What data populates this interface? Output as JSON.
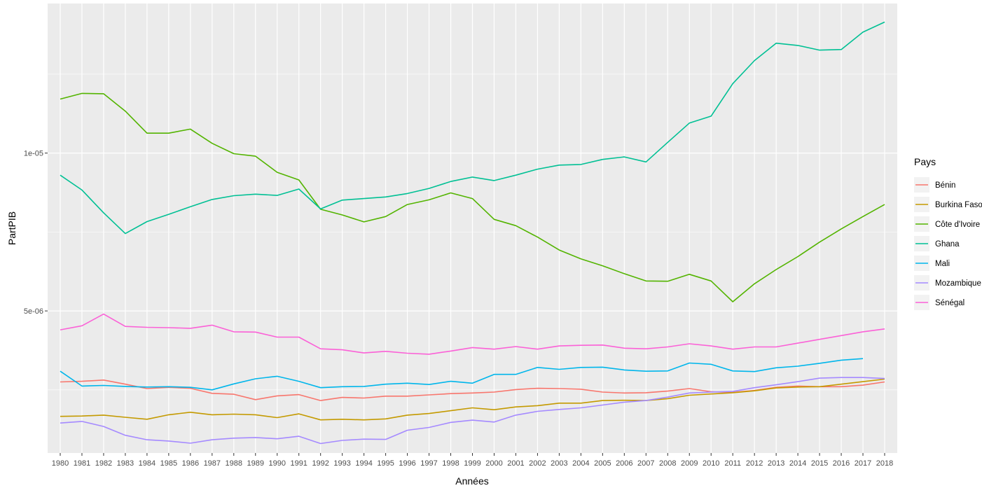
{
  "chart_data": {
    "type": "line",
    "xlabel": "Années",
    "ylabel": "PartPIB",
    "x": [
      1980,
      1981,
      1982,
      1983,
      1984,
      1985,
      1986,
      1987,
      1988,
      1989,
      1990,
      1991,
      1992,
      1993,
      1994,
      1995,
      1996,
      1997,
      1998,
      1999,
      2000,
      2001,
      2002,
      2003,
      2004,
      2005,
      2006,
      2007,
      2008,
      2009,
      2010,
      2011,
      2012,
      2013,
      2014,
      2015,
      2016,
      2017,
      2018
    ],
    "x_tick_labels": [
      "1980",
      "1981",
      "1982",
      "1983",
      "1984",
      "1985",
      "1986",
      "1987",
      "1988",
      "1989",
      "1990",
      "1991",
      "1992",
      "1993",
      "1994",
      "1995",
      "1996",
      "1997",
      "1998",
      "1999",
      "2000",
      "2001",
      "2002",
      "2003",
      "2004",
      "2005",
      "2006",
      "2007",
      "2008",
      "2009",
      "2010",
      "2011",
      "2012",
      "2013",
      "2014",
      "2015",
      "2016",
      "2017",
      "2018"
    ],
    "ylim": [
      5e-07,
      1.4738e-05
    ],
    "y_ticks": [
      5e-06,
      1e-05
    ],
    "y_tick_labels": [
      "5e-06",
      "1e-05"
    ],
    "grid": true,
    "legend": {
      "title": "Pays",
      "position": "right"
    },
    "series": [
      {
        "name": "Bénin",
        "color": "#F8766D",
        "values": [
          2.75e-06,
          2.77e-06,
          2.81e-06,
          2.68e-06,
          2.54e-06,
          2.58e-06,
          2.55e-06,
          2.39e-06,
          2.36e-06,
          2.19e-06,
          2.31e-06,
          2.35e-06,
          2.16e-06,
          2.26e-06,
          2.24e-06,
          2.3e-06,
          2.3e-06,
          2.34e-06,
          2.38e-06,
          2.4e-06,
          2.43e-06,
          2.51e-06,
          2.55e-06,
          2.54e-06,
          2.52e-06,
          2.43e-06,
          2.4e-06,
          2.41e-06,
          2.46e-06,
          2.54e-06,
          2.44e-06,
          2.42e-06,
          2.48e-06,
          2.58e-06,
          2.62e-06,
          2.6e-06,
          2.6e-06,
          2.65e-06,
          2.75e-06
        ]
      },
      {
        "name": "Burkina Faso",
        "color": "#C49A00",
        "values": [
          1.66e-06,
          1.67e-06,
          1.7e-06,
          1.63e-06,
          1.57e-06,
          1.71e-06,
          1.79e-06,
          1.71e-06,
          1.73e-06,
          1.71e-06,
          1.62e-06,
          1.74e-06,
          1.55e-06,
          1.57e-06,
          1.55e-06,
          1.58e-06,
          1.7e-06,
          1.75e-06,
          1.84e-06,
          1.93e-06,
          1.87e-06,
          1.96e-06,
          2e-06,
          2.08e-06,
          2.08e-06,
          2.16e-06,
          2.17e-06,
          2.16e-06,
          2.22e-06,
          2.33e-06,
          2.37e-06,
          2.41e-06,
          2.47e-06,
          2.56e-06,
          2.59e-06,
          2.6e-06,
          2.68e-06,
          2.76e-06,
          2.84e-06
        ]
      },
      {
        "name": "Côte d'Ivoire",
        "color": "#53B400",
        "values": [
          1.171e-05,
          1.189e-05,
          1.188e-05,
          1.133e-05,
          1.063e-05,
          1.063e-05,
          1.076e-05,
          1.031e-05,
          9.98e-06,
          9.9e-06,
          9.39e-06,
          9.15e-06,
          8.22e-06,
          8.04e-06,
          7.82e-06,
          7.99e-06,
          8.37e-06,
          8.52e-06,
          8.74e-06,
          8.56e-06,
          7.9e-06,
          7.7e-06,
          7.34e-06,
          6.93e-06,
          6.65e-06,
          6.43e-06,
          6.18e-06,
          5.95e-06,
          5.94e-06,
          6.16e-06,
          5.95e-06,
          5.29e-06,
          5.86e-06,
          6.31e-06,
          6.72e-06,
          7.18e-06,
          7.6e-06,
          7.99e-06,
          8.37e-06
        ]
      },
      {
        "name": "Ghana",
        "color": "#00C094",
        "values": [
          9.3e-06,
          8.83e-06,
          8.11e-06,
          7.45e-06,
          7.83e-06,
          8.06e-06,
          8.3e-06,
          8.53e-06,
          8.65e-06,
          8.7e-06,
          8.66e-06,
          8.86e-06,
          8.23e-06,
          8.51e-06,
          8.56e-06,
          8.61e-06,
          8.72e-06,
          8.88e-06,
          9.1e-06,
          9.24e-06,
          9.13e-06,
          9.3e-06,
          9.49e-06,
          9.62e-06,
          9.64e-06,
          9.8e-06,
          9.88e-06,
          9.72e-06,
          1.034e-05,
          1.095e-05,
          1.117e-05,
          1.22e-05,
          1.293e-05,
          1.348e-05,
          1.341e-05,
          1.326e-05,
          1.328e-05,
          1.383e-05,
          1.415e-05
        ]
      },
      {
        "name": "Mali",
        "color": "#00B6EB",
        "values": [
          3.09e-06,
          2.62e-06,
          2.64e-06,
          2.61e-06,
          2.59e-06,
          2.6e-06,
          2.58e-06,
          2.5e-06,
          2.69e-06,
          2.85e-06,
          2.93e-06,
          2.77e-06,
          2.57e-06,
          2.6e-06,
          2.61e-06,
          2.68e-06,
          2.71e-06,
          2.67e-06,
          2.77e-06,
          2.71e-06,
          2.99e-06,
          2.99e-06,
          3.21e-06,
          3.15e-06,
          3.21e-06,
          3.22e-06,
          3.13e-06,
          3.09e-06,
          3.1e-06,
          3.35e-06,
          3.31e-06,
          3.1e-06,
          3.08e-06,
          3.2e-06,
          3.25e-06,
          3.34e-06,
          3.44e-06,
          3.49e-06,
          null
        ]
      },
      {
        "name": "Mozambique",
        "color": "#A58AFF",
        "values": [
          1.45e-06,
          1.5e-06,
          1.34e-06,
          1.06e-06,
          9.2e-07,
          8.8e-07,
          8.1e-07,
          9.2e-07,
          9.7e-07,
          9.9e-07,
          9.5e-07,
          1.03e-06,
          8e-07,
          9e-07,
          9.4e-07,
          9.3e-07,
          1.22e-06,
          1.31e-06,
          1.47e-06,
          1.54e-06,
          1.48e-06,
          1.7e-06,
          1.82e-06,
          1.88e-06,
          1.93e-06,
          2.02e-06,
          2.11e-06,
          2.16e-06,
          2.27e-06,
          2.4e-06,
          2.43e-06,
          2.45e-06,
          2.57e-06,
          2.66e-06,
          2.76e-06,
          2.87e-06,
          2.89e-06,
          2.89e-06,
          2.86e-06
        ]
      },
      {
        "name": "Sénégal",
        "color": "#FB61D7",
        "values": [
          4.4e-06,
          4.53e-06,
          4.9e-06,
          4.51e-06,
          4.48e-06,
          4.47e-06,
          4.45e-06,
          4.55e-06,
          4.34e-06,
          4.33e-06,
          4.17e-06,
          4.17e-06,
          3.8e-06,
          3.77e-06,
          3.67e-06,
          3.72e-06,
          3.66e-06,
          3.63e-06,
          3.73e-06,
          3.84e-06,
          3.79e-06,
          3.87e-06,
          3.79e-06,
          3.89e-06,
          3.91e-06,
          3.92e-06,
          3.82e-06,
          3.8e-06,
          3.86e-06,
          3.96e-06,
          3.89e-06,
          3.79e-06,
          3.86e-06,
          3.86e-06,
          3.98e-06,
          4.1e-06,
          4.22e-06,
          4.34e-06,
          4.43e-06
        ]
      }
    ]
  }
}
